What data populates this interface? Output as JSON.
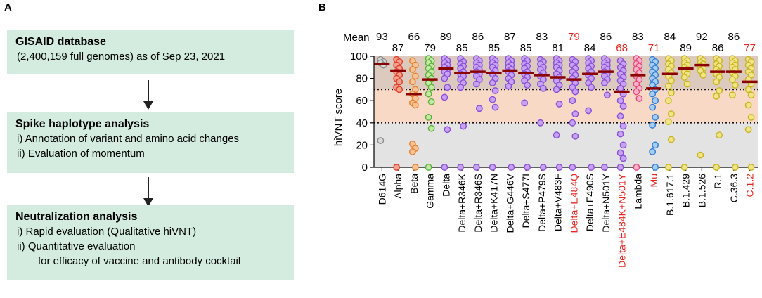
{
  "panel_a": {
    "label": "A",
    "box1": {
      "title": "GISAID database",
      "lines": [
        "(2,400,159 full genomes) as of Sep 23, 2021"
      ]
    },
    "box2": {
      "title": "Spike haplotype analysis",
      "lines": [
        "i) Annotation of variant and amino acid changes",
        "ii) Evaluation of momentum"
      ]
    },
    "box3": {
      "title": "Neutralization analysis",
      "lines": [
        "i) Rapid evaluation (Qualitative hiVNT)",
        "ii) Quantitative evaluation",
        "for efficacy of vaccine and antibody cocktail"
      ]
    }
  },
  "panel_b": {
    "label": "B",
    "mean_label": "Mean"
  },
  "colors": {
    "box_fill": "#d3ecdf",
    "mean_bar": "#8b0000",
    "highlight_text": "#e8251f"
  },
  "chart_data": {
    "type": "scatter",
    "ylabel": "hiVNT score",
    "ylim": [
      0,
      100
    ],
    "yticks": [
      0,
      20,
      40,
      60,
      80,
      100
    ],
    "threshold_lines": [
      40,
      70
    ],
    "bands": [
      {
        "from": 0,
        "to": 40,
        "color": "#e3e3e3"
      },
      {
        "from": 40,
        "to": 70,
        "color": "#f8d9c6"
      },
      {
        "from": 70,
        "to": 100,
        "color": "#ddcabf"
      }
    ],
    "groups": [
      {
        "name": "D614G",
        "mean": 93,
        "color": "#8c8c8c",
        "fill": "#d9d9d9",
        "highlight": false,
        "values": [
          97,
          95,
          94,
          92,
          24
        ]
      },
      {
        "name": "Alpha",
        "mean": 87,
        "color": "#e23c2c",
        "fill": "#f4a28c",
        "highlight": false,
        "values": [
          97,
          95,
          92,
          89,
          86,
          83,
          80,
          77,
          72,
          70,
          0
        ]
      },
      {
        "name": "Beta",
        "mean": 66,
        "color": "#e8802c",
        "fill": "#f6c397",
        "highlight": false,
        "values": [
          96,
          92,
          88,
          82,
          77,
          70,
          66,
          62,
          58,
          56,
          21,
          17,
          14,
          0
        ]
      },
      {
        "name": "Gamma",
        "mean": 79,
        "color": "#58b238",
        "fill": "#c6e8a6",
        "highlight": false,
        "values": [
          98,
          96,
          94,
          91,
          89,
          86,
          83,
          80,
          76,
          72,
          66,
          59,
          45,
          35,
          0
        ]
      },
      {
        "name": "Delta",
        "mean": 89,
        "color": "#8a4fd8",
        "fill": "#c7a2f2",
        "highlight": false,
        "values": [
          98,
          96,
          94,
          92,
          90,
          88,
          86,
          84,
          80,
          72,
          63,
          34,
          0
        ]
      },
      {
        "name": "Delta+R346K",
        "mean": 85,
        "color": "#8a4fd8",
        "fill": "#c7a2f2",
        "highlight": false,
        "values": [
          98,
          95,
          93,
          91,
          89,
          86,
          84,
          82,
          79,
          76,
          72,
          37,
          0
        ]
      },
      {
        "name": "Delta+R346S",
        "mean": 86,
        "color": "#8a4fd8",
        "fill": "#c7a2f2",
        "highlight": false,
        "values": [
          98,
          96,
          94,
          92,
          90,
          88,
          86,
          84,
          82,
          79,
          75,
          53,
          0
        ]
      },
      {
        "name": "Delta+K417N",
        "mean": 85,
        "color": "#8a4fd8",
        "fill": "#c7a2f2",
        "highlight": false,
        "values": [
          98,
          96,
          94,
          92,
          90,
          87,
          84,
          80,
          76,
          69,
          61,
          54,
          0
        ]
      },
      {
        "name": "Delta+G446V",
        "mean": 87,
        "color": "#8a4fd8",
        "fill": "#c7a2f2",
        "highlight": false,
        "values": [
          98,
          96,
          94,
          92,
          90,
          88,
          86,
          83,
          80,
          77,
          73,
          0
        ]
      },
      {
        "name": "Delta+S477I",
        "mean": 85,
        "color": "#8a4fd8",
        "fill": "#c7a2f2",
        "highlight": false,
        "values": [
          98,
          96,
          93,
          91,
          89,
          86,
          84,
          81,
          78,
          74,
          58,
          0
        ]
      },
      {
        "name": "Delta+P479S",
        "mean": 83,
        "color": "#8a4fd8",
        "fill": "#c7a2f2",
        "highlight": false,
        "values": [
          97,
          95,
          93,
          90,
          88,
          85,
          82,
          79,
          75,
          71,
          40,
          0
        ]
      },
      {
        "name": "Delta+V483F",
        "mean": 81,
        "color": "#8a4fd8",
        "fill": "#c7a2f2",
        "highlight": false,
        "values": [
          98,
          96,
          94,
          92,
          90,
          87,
          84,
          81,
          78,
          74,
          70,
          57,
          29,
          0
        ]
      },
      {
        "name": "Delta+E484Q",
        "mean": 79,
        "color": "#8a4fd8",
        "fill": "#c7a2f2",
        "highlight": true,
        "values": [
          97,
          95,
          92,
          89,
          86,
          83,
          80,
          76,
          72,
          68,
          60,
          48,
          40,
          28,
          0
        ]
      },
      {
        "name": "Delta+F490S",
        "mean": 84,
        "color": "#8a4fd8",
        "fill": "#c7a2f2",
        "highlight": false,
        "values": [
          98,
          96,
          94,
          91,
          89,
          86,
          83,
          80,
          76,
          72,
          51,
          0
        ]
      },
      {
        "name": "Delta+N501Y",
        "mean": 86,
        "color": "#8a4fd8",
        "fill": "#c7a2f2",
        "highlight": false,
        "values": [
          98,
          96,
          94,
          92,
          90,
          88,
          86,
          84,
          82,
          79,
          76,
          65,
          0
        ]
      },
      {
        "name": "Delta+E484K+N501Y",
        "mean": 68,
        "color": "#8a4fd8",
        "fill": "#c7a2f2",
        "highlight": true,
        "values": [
          96,
          93,
          90,
          87,
          84,
          81,
          78,
          75,
          71,
          66,
          60,
          55,
          46,
          37,
          30,
          20,
          13,
          8,
          0
        ]
      },
      {
        "name": "Lambda",
        "mean": 83,
        "color": "#e8487a",
        "fill": "#f7b3c8",
        "highlight": false,
        "values": [
          98,
          96,
          93,
          91,
          88,
          85,
          82,
          79,
          75,
          71,
          68,
          62,
          0
        ]
      },
      {
        "name": "Mu",
        "mean": 71,
        "color": "#2f7fd6",
        "fill": "#a9ccf2",
        "highlight": true,
        "values": [
          97,
          95,
          92,
          89,
          86,
          83,
          80,
          77,
          74,
          70,
          66,
          60,
          54,
          45,
          38,
          20,
          14,
          0
        ]
      },
      {
        "name": "B.1.617.1",
        "mean": 84,
        "color": "#c8b41c",
        "fill": "#f0e48a",
        "highlight": false,
        "values": [
          98,
          96,
          93,
          91,
          88,
          85,
          82,
          78,
          73,
          67,
          60,
          48,
          41,
          25,
          0
        ]
      },
      {
        "name": "B.1.429",
        "mean": 89,
        "color": "#c8b41c",
        "fill": "#f0e48a",
        "highlight": false,
        "values": [
          98,
          96,
          94,
          92,
          90,
          88,
          86,
          84,
          81,
          75,
          0
        ]
      },
      {
        "name": "B.1.526",
        "mean": 92,
        "color": "#c8b41c",
        "fill": "#f0e48a",
        "highlight": false,
        "values": [
          98,
          96,
          94,
          93,
          91,
          89,
          87,
          83,
          11
        ]
      },
      {
        "name": "R.1",
        "mean": 86,
        "color": "#c8b41c",
        "fill": "#f0e48a",
        "highlight": false,
        "values": [
          98,
          96,
          93,
          91,
          88,
          86,
          84,
          81,
          77,
          69,
          64,
          29,
          0
        ]
      },
      {
        "name": "C.36.3",
        "mean": 86,
        "color": "#c8b41c",
        "fill": "#f0e48a",
        "highlight": false,
        "values": [
          98,
          96,
          94,
          92,
          90,
          88,
          85,
          82,
          79,
          74,
          65,
          0
        ]
      },
      {
        "name": "C.1.2",
        "mean": 77,
        "color": "#c8b41c",
        "fill": "#f0e48a",
        "highlight": true,
        "values": [
          97,
          95,
          92,
          89,
          86,
          83,
          79,
          75,
          70,
          65,
          56,
          45,
          34,
          0
        ]
      }
    ]
  }
}
